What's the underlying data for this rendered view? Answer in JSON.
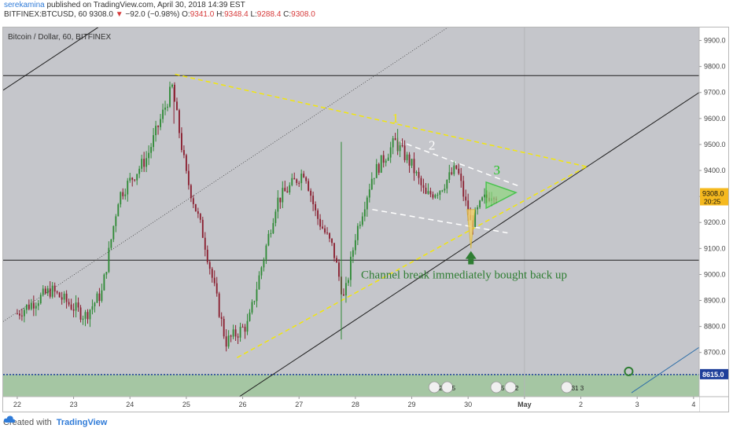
{
  "header": {
    "author": "serekamina",
    "published_text": "published on TradingView.com, April 30, 2018 14:39 EST",
    "symbol": "BITFINEX:BTCUSD, 60",
    "last": "9308.0",
    "change": "−92.0 (−0.98%)",
    "o_label": "O:",
    "o_value": "9341.0",
    "h_label": "H:",
    "h_value": "9348.4",
    "l_label": "L:",
    "l_value": "9288.4",
    "c_label": "C:",
    "c_value": "9308.0"
  },
  "chart_title": "Bitcoin / Dollar, 60, BITFINEX",
  "footer": {
    "created_with": "Created with",
    "brand": "TradingView"
  },
  "colors": {
    "bg": "#c5c6cb",
    "up": "#2f8a36",
    "down": "#8a1f30",
    "yellow_line": "#f2e60c",
    "white_dashed": "#ffffff",
    "green_area": "#9fc69c",
    "annotation_green": "#2e7d32",
    "price_label_bg": "#f5b91e"
  },
  "chart_data": {
    "type": "candlestick",
    "title": "Bitcoin / Dollar, 60, BITFINEX",
    "x_tick_labels": [
      "22",
      "23",
      "24",
      "25",
      "26",
      "27",
      "28",
      "29",
      "30",
      "May",
      "2",
      "3",
      "4"
    ],
    "y_tick_labels": [
      "8700.0",
      "8800.0",
      "8900.0",
      "9000.0",
      "9100.0",
      "9200.0",
      "9300.0",
      "9400.0",
      "9500.0",
      "9600.0",
      "9700.0",
      "9800.0",
      "9900.0"
    ],
    "y_range": [
      8530,
      9950
    ],
    "current_price": "9308.0",
    "countdown": "20:25",
    "level_label": "8615.0",
    "level_value": 8615.0,
    "horizontal_levels": [
      9765,
      9055
    ],
    "annotations": {
      "wave_1": "1",
      "wave_2": "2",
      "wave_3": "3",
      "note": "Channel break immediately bought back up"
    },
    "event_badges": [
      "2 7",
      "5",
      "5 2 3",
      "2",
      "31 3"
    ],
    "price_keypoints": [
      {
        "day": 22.0,
        "price": 8850
      },
      {
        "day": 22.6,
        "price": 8940
      },
      {
        "day": 23.2,
        "price": 8840
      },
      {
        "day": 23.5,
        "price": 8930
      },
      {
        "day": 23.8,
        "price": 9300
      },
      {
        "day": 24.3,
        "price": 9450
      },
      {
        "day": 24.75,
        "price": 9720
      },
      {
        "day": 25.0,
        "price": 9380
      },
      {
        "day": 25.3,
        "price": 9150
      },
      {
        "day": 25.7,
        "price": 8740
      },
      {
        "day": 26.1,
        "price": 8810
      },
      {
        "day": 26.6,
        "price": 9280
      },
      {
        "day": 27.1,
        "price": 9400
      },
      {
        "day": 27.3,
        "price": 9230
      },
      {
        "day": 27.6,
        "price": 9100
      },
      {
        "day": 27.8,
        "price": 8900
      },
      {
        "day": 28.0,
        "price": 9150
      },
      {
        "day": 28.3,
        "price": 9380
      },
      {
        "day": 28.7,
        "price": 9510
      },
      {
        "day": 29.0,
        "price": 9420
      },
      {
        "day": 29.25,
        "price": 9300
      },
      {
        "day": 29.5,
        "price": 9330
      },
      {
        "day": 29.8,
        "price": 9410
      },
      {
        "day": 30.05,
        "price": 9190
      },
      {
        "day": 30.25,
        "price": 9280
      },
      {
        "day": 30.45,
        "price": 9320
      },
      {
        "day": 30.5,
        "price": 9308
      }
    ]
  }
}
